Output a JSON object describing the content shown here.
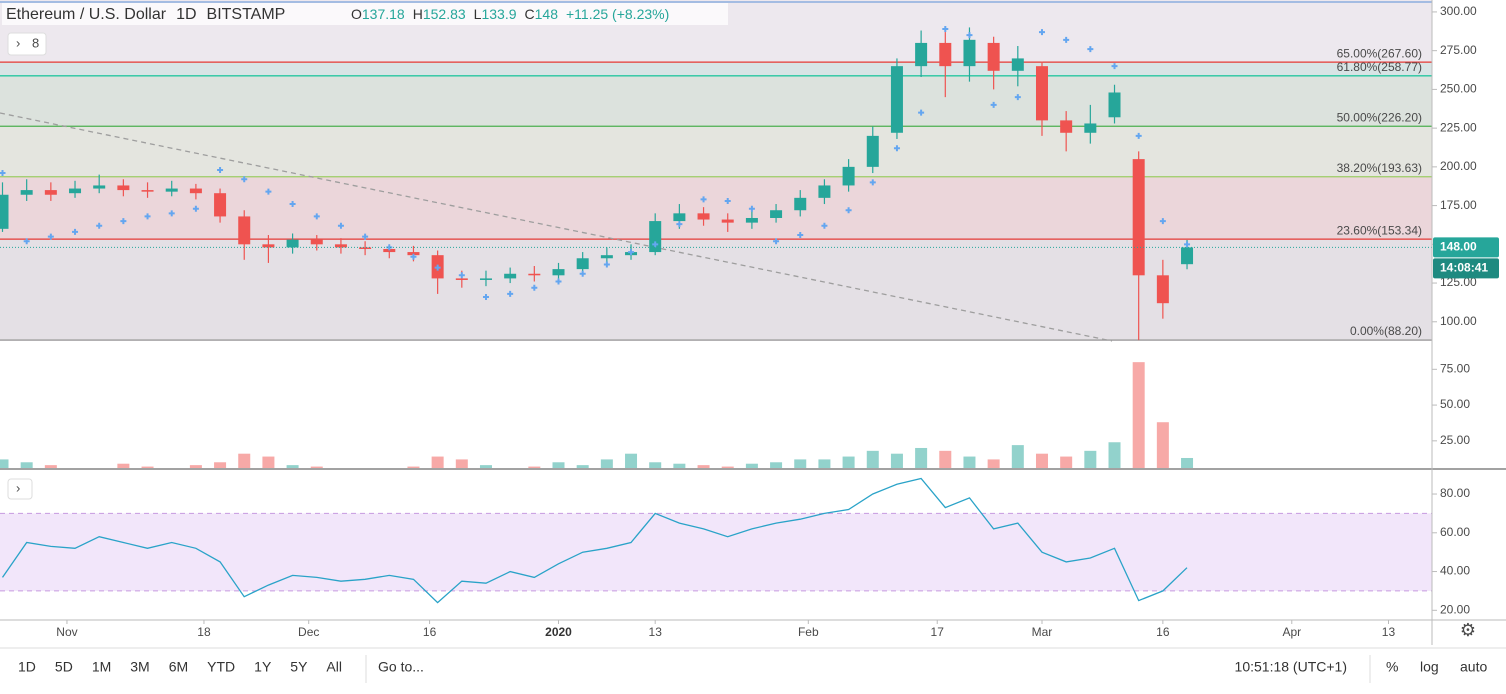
{
  "header": {
    "symbol": "Ethereum / U.S. Dollar",
    "interval": "1D",
    "exchange": "BITSTAMP",
    "ohlc_labels": [
      "O",
      "H",
      "L",
      "C"
    ],
    "change": "+11.25 (+8.23%)",
    "indicator_count": "8"
  },
  "chart_data": [
    {
      "type": "candlestick",
      "x": [
        0,
        3,
        6,
        9,
        12,
        15,
        18,
        21,
        24,
        27,
        30,
        33,
        36,
        39,
        42,
        45,
        48,
        51,
        54,
        57,
        60,
        63,
        66,
        69,
        72,
        75,
        78,
        81,
        84,
        87,
        90,
        93,
        96,
        99,
        102,
        105,
        108,
        111,
        114,
        117,
        120,
        123,
        126,
        129,
        132,
        135,
        138,
        141,
        144,
        147
      ],
      "open": [
        160,
        182,
        185,
        183,
        186,
        188,
        185,
        184,
        186,
        183,
        168,
        150,
        148,
        153,
        150,
        148,
        147,
        145,
        143,
        128,
        127,
        128,
        131,
        130,
        134,
        141,
        143,
        145,
        165,
        170,
        166,
        164,
        167,
        172,
        180,
        188,
        200,
        222,
        265,
        280,
        265,
        280,
        262,
        265,
        230,
        222,
        232,
        205,
        130,
        137.18
      ],
      "high": [
        190,
        192,
        190,
        191,
        195,
        192,
        190,
        191,
        189,
        186,
        172,
        156,
        157,
        156,
        154,
        152,
        150,
        149,
        146,
        133,
        133,
        135,
        136,
        138,
        145,
        148,
        150,
        170,
        176,
        174,
        170,
        172,
        176,
        185,
        192,
        205,
        226,
        270,
        288,
        287,
        290,
        284,
        278,
        268,
        236,
        240,
        253,
        210,
        140,
        152.83
      ],
      "low": [
        158,
        178,
        178,
        180,
        183,
        181,
        180,
        181,
        179,
        164,
        140,
        138,
        144,
        146,
        144,
        143,
        141,
        139,
        118,
        122,
        123,
        125,
        126,
        128,
        131,
        138,
        140,
        143,
        160,
        162,
        158,
        160,
        164,
        168,
        176,
        184,
        196,
        218,
        258,
        245,
        255,
        250,
        252,
        220,
        210,
        215,
        228,
        88.2,
        102,
        133.9
      ],
      "close": [
        182,
        185,
        182,
        186,
        188,
        185,
        184,
        186,
        183,
        168,
        150,
        148,
        153,
        150,
        148,
        147,
        145,
        143,
        128,
        127,
        128,
        131,
        130,
        134,
        141,
        143,
        145,
        165,
        170,
        166,
        164,
        167,
        172,
        180,
        188,
        200,
        220,
        265,
        280,
        265,
        282,
        262,
        270,
        230,
        222,
        228,
        248,
        130,
        112,
        148
      ],
      "color_up": "#26a69a",
      "color_down": "#ef5350",
      "xlim": [
        -0.31,
        177.4
      ],
      "ylim": [
        87.6,
        307.7
      ],
      "yticks": [
        {
          "value": 300,
          "label": "300.00"
        },
        {
          "value": 275,
          "label": "275.00"
        },
        {
          "value": 250,
          "label": "250.00"
        },
        {
          "value": 225,
          "label": "225.00"
        },
        {
          "value": 200,
          "label": "200.00"
        },
        {
          "value": 175,
          "label": "175.00"
        },
        {
          "value": 150,
          "label": "150.00"
        },
        {
          "value": 125,
          "label": "125.00"
        },
        {
          "value": 100,
          "label": "100.00"
        }
      ],
      "fib_levels": [
        {
          "value": 267.6,
          "label": "65.00%(267.60)",
          "color": "#e53935"
        },
        {
          "value": 258.77,
          "label": "61.80%(258.77)",
          "color": "#26c6a0"
        },
        {
          "value": 226.2,
          "label": "50.00%(226.20)",
          "color": "#4caf50"
        },
        {
          "value": 193.63,
          "label": "38.20%(193.63)",
          "color": "#9ccc65"
        },
        {
          "value": 153.34,
          "label": "23.60%(153.34)",
          "color": "#e53935"
        },
        {
          "value": 88.2,
          "label": "0.00%(88.20)",
          "color": "#9e9e9e"
        }
      ],
      "sar": {
        "color": "#64a6f0",
        "values": [
          196,
          152,
          155,
          158,
          162,
          165,
          168,
          170,
          173,
          198,
          192,
          184,
          176,
          168,
          162,
          155,
          148,
          142,
          135,
          130,
          116,
          118,
          122,
          126,
          131,
          137,
          145,
          150,
          163,
          179,
          178,
          173,
          152,
          156,
          162,
          172,
          190,
          212,
          235,
          289,
          285,
          240,
          245,
          287,
          282,
          276,
          265,
          220,
          165,
          150
        ]
      },
      "last_price": {
        "value": 148,
        "label": "148.00"
      },
      "countdown": "14:08:41"
    },
    {
      "type": "bar",
      "x": [
        0,
        3,
        6,
        9,
        12,
        15,
        18,
        21,
        24,
        27,
        30,
        33,
        36,
        39,
        42,
        45,
        48,
        51,
        54,
        57,
        60,
        63,
        66,
        69,
        72,
        75,
        78,
        81,
        84,
        87,
        90,
        93,
        96,
        99,
        102,
        105,
        108,
        111,
        114,
        117,
        120,
        123,
        126,
        129,
        132,
        135,
        138,
        141,
        144,
        147
      ],
      "values": [
        12,
        10,
        8,
        6,
        5,
        9,
        7,
        5,
        8,
        10,
        16,
        14,
        8,
        7,
        6,
        6,
        5,
        7,
        14,
        12,
        8,
        6,
        7,
        10,
        8,
        12,
        16,
        10,
        9,
        8,
        7,
        9,
        10,
        12,
        12,
        14,
        18,
        16,
        20,
        18,
        14,
        12,
        22,
        16,
        14,
        18,
        24,
        80,
        38,
        13
      ],
      "xlim": [
        -0.31,
        177.4
      ],
      "ylim": [
        6,
        92
      ],
      "yticks": [
        {
          "value": 75,
          "label": "75.00"
        },
        {
          "value": 50,
          "label": "50.00"
        },
        {
          "value": 25,
          "label": "25.00"
        }
      ]
    },
    {
      "type": "line",
      "color": "#2aa3c8",
      "x": [
        0,
        3,
        6,
        9,
        12,
        15,
        18,
        21,
        24,
        27,
        30,
        33,
        36,
        39,
        42,
        45,
        48,
        51,
        54,
        57,
        60,
        63,
        66,
        69,
        72,
        75,
        78,
        81,
        84,
        87,
        90,
        93,
        96,
        99,
        102,
        105,
        108,
        111,
        114,
        117,
        120,
        123,
        126,
        129,
        132,
        135,
        138,
        141,
        144,
        147
      ],
      "values": [
        37,
        55,
        53,
        52,
        58,
        55,
        52,
        55,
        52,
        45,
        27,
        33,
        38,
        37,
        35,
        36,
        38,
        36,
        24,
        35,
        34,
        40,
        37,
        44,
        50,
        52,
        55,
        70,
        65,
        62,
        58,
        62,
        65,
        67,
        70,
        72,
        80,
        85,
        88,
        73,
        78,
        62,
        65,
        50,
        45,
        47,
        52,
        25,
        30,
        42
      ],
      "band": [
        30,
        70
      ],
      "xlim": [
        -0.31,
        177.4
      ],
      "ylim": [
        15,
        92.4
      ],
      "yticks": [
        {
          "value": 80,
          "label": "80.00"
        },
        {
          "value": 60,
          "label": "60.00"
        },
        {
          "value": 40,
          "label": "40.00"
        },
        {
          "value": 20,
          "label": "20.00"
        }
      ],
      "xticks": [
        {
          "value": 8,
          "label": "Nov"
        },
        {
          "value": 25,
          "label": "18"
        },
        {
          "value": 38,
          "label": "Dec"
        },
        {
          "value": 53,
          "label": "16"
        },
        {
          "value": 69,
          "label": "2020"
        },
        {
          "value": 81,
          "label": "13"
        },
        {
          "value": 100,
          "label": "Feb"
        },
        {
          "value": 116,
          "label": "17"
        },
        {
          "value": 129,
          "label": "Mar"
        },
        {
          "value": 144,
          "label": "16"
        },
        {
          "value": 160,
          "label": "Apr"
        },
        {
          "value": 172,
          "label": "13"
        }
      ]
    }
  ],
  "toolbar": {
    "ranges": [
      "1D",
      "5D",
      "1M",
      "3M",
      "6M",
      "YTD",
      "1Y",
      "5Y",
      "All"
    ],
    "goto": "Go to...",
    "clock": "10:51:18 (UTC+1)",
    "options": [
      "%",
      "log",
      "auto"
    ]
  }
}
